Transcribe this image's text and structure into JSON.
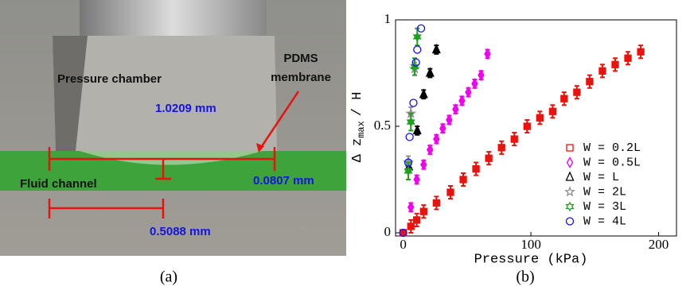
{
  "panel_a": {
    "chamber_label": "Pressure chamber",
    "membrane_label": [
      "PDMS",
      "membrane"
    ],
    "height_label": "1.0209 mm",
    "deflection_label": "0.0807 mm",
    "channel_label": "Fluid channel",
    "width_label": "0.5088 mm",
    "caption": "(a)"
  },
  "chart_data": {
    "type": "scatter",
    "caption": "(b)",
    "x_label": "Pressure (kPa)",
    "y_label": {
      "main": "Δ z",
      "sub": "max",
      "tail": "/ H"
    },
    "xlim": [
      -6,
      214
    ],
    "xticks": [
      0,
      100,
      200
    ],
    "ylim": [
      -0.015,
      1.0
    ],
    "yticks": [
      0,
      0.5,
      1
    ],
    "series": [
      {
        "name": "W = 0.2L",
        "color": "#e8130f",
        "marker": "square",
        "x": [
          0,
          6,
          10.6,
          16,
          26,
          37,
          47,
          57,
          67,
          77,
          87,
          97,
          107,
          117,
          126,
          136,
          146,
          156,
          166,
          176,
          186
        ],
        "values": [
          0,
          0.03,
          0.06,
          0.1,
          0.14,
          0.19,
          0.25,
          0.3,
          0.35,
          0.4,
          0.44,
          0.5,
          0.54,
          0.57,
          0.63,
          0.66,
          0.71,
          0.76,
          0.79,
          0.82,
          0.85
        ],
        "errors": [
          0.01,
          0.03,
          0.03,
          0.03,
          0.03,
          0.03,
          0.03,
          0.03,
          0.03,
          0.03,
          0.03,
          0.03,
          0.03,
          0.03,
          0.03,
          0.03,
          0.03,
          0.03,
          0.03,
          0.03,
          0.03
        ]
      },
      {
        "name": "W = 0.5L",
        "color": "#f000f0",
        "marker": "diamond",
        "x": [
          6,
          10.6,
          16,
          21,
          26,
          31,
          36,
          41,
          46,
          51,
          56,
          61,
          66
        ],
        "values": [
          0.12,
          0.25,
          0.32,
          0.39,
          0.44,
          0.49,
          0.53,
          0.58,
          0.62,
          0.66,
          0.7,
          0.74,
          0.84
        ],
        "errors": [
          0.02,
          0.02,
          0.02,
          0.02,
          0.02,
          0.02,
          0.02,
          0.02,
          0.02,
          0.02,
          0.02,
          0.02,
          0.02
        ]
      },
      {
        "name": "W = L",
        "color": "#000000",
        "marker": "triangle",
        "x": [
          4.5,
          11,
          16,
          21,
          26
        ],
        "values": [
          0.31,
          0.48,
          0.65,
          0.75,
          0.86
        ],
        "errors": [
          0.02,
          0.02,
          0.02,
          0.02,
          0.02
        ]
      },
      {
        "name": "W = 2L",
        "color": "#909090",
        "marker": "star",
        "x": [
          4,
          6,
          9
        ],
        "values": [
          0.33,
          0.56,
          0.77
        ],
        "errors": [
          0.03,
          0.03,
          0.03
        ]
      },
      {
        "name": "W = 3L",
        "color": "#1fa01f",
        "marker": "hexagram",
        "x": [
          4,
          6,
          9,
          11
        ],
        "values": [
          0.29,
          0.52,
          0.78,
          0.92
        ],
        "errors": [
          0.04,
          0.04,
          0.04,
          0.04
        ]
      },
      {
        "name": "W = 4L",
        "color": "#1010ee",
        "marker": "circle",
        "x": [
          0,
          4,
          5,
          8,
          10,
          11,
          14
        ],
        "values": [
          0,
          0.33,
          0.45,
          0.61,
          0.8,
          0.86,
          0.96
        ]
      }
    ]
  }
}
